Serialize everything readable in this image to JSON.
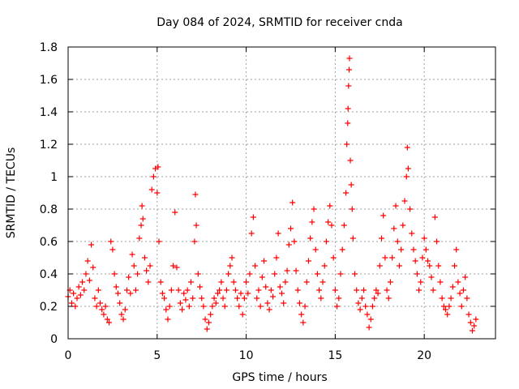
{
  "chart_data": {
    "type": "scatter",
    "title": "Day 084 of 2024, SRMTID for receiver cnda",
    "xlabel": "GPS time / hours",
    "ylabel": "SRMTID / TECUs",
    "xlim": [
      0,
      24
    ],
    "ylim": [
      0,
      1.8
    ],
    "x_ticks": [
      0,
      5,
      10,
      15,
      20
    ],
    "x_tick_labels": [
      "0",
      "5",
      "10",
      "15",
      "20"
    ],
    "y_ticks": [
      0,
      0.2,
      0.4,
      0.6,
      0.8,
      1.0,
      1.2,
      1.4,
      1.6,
      1.8
    ],
    "y_tick_labels": [
      "0",
      "0.2",
      "0.4",
      "0.6",
      "0.8",
      "1",
      "1.2",
      "1.4",
      "1.6",
      "1.8"
    ],
    "grid": true,
    "marker": "plus",
    "color": "#ff0000",
    "series": [
      {
        "name": "SRMTID",
        "points": [
          [
            0.0,
            0.26
          ],
          [
            0.1,
            0.3
          ],
          [
            0.2,
            0.22
          ],
          [
            0.3,
            0.28
          ],
          [
            0.4,
            0.2
          ],
          [
            0.5,
            0.25
          ],
          [
            0.6,
            0.32
          ],
          [
            0.7,
            0.27
          ],
          [
            0.8,
            0.35
          ],
          [
            0.9,
            0.3
          ],
          [
            1.0,
            0.4
          ],
          [
            1.1,
            0.48
          ],
          [
            1.2,
            0.36
          ],
          [
            1.3,
            0.58
          ],
          [
            1.4,
            0.44
          ],
          [
            1.5,
            0.25
          ],
          [
            1.6,
            0.2
          ],
          [
            1.7,
            0.3
          ],
          [
            1.8,
            0.22
          ],
          [
            1.9,
            0.18
          ],
          [
            2.0,
            0.15
          ],
          [
            2.1,
            0.2
          ],
          [
            2.2,
            0.12
          ],
          [
            2.3,
            0.1
          ],
          [
            2.4,
            0.6
          ],
          [
            2.5,
            0.55
          ],
          [
            2.6,
            0.4
          ],
          [
            2.7,
            0.32
          ],
          [
            2.8,
            0.28
          ],
          [
            2.9,
            0.22
          ],
          [
            3.0,
            0.15
          ],
          [
            3.1,
            0.12
          ],
          [
            3.2,
            0.18
          ],
          [
            3.3,
            0.3
          ],
          [
            3.4,
            0.38
          ],
          [
            3.5,
            0.28
          ],
          [
            3.6,
            0.52
          ],
          [
            3.7,
            0.45
          ],
          [
            3.8,
            0.3
          ],
          [
            3.9,
            0.4
          ],
          [
            4.0,
            0.62
          ],
          [
            4.1,
            0.7
          ],
          [
            4.15,
            0.82
          ],
          [
            4.2,
            0.74
          ],
          [
            4.3,
            0.5
          ],
          [
            4.4,
            0.42
          ],
          [
            4.5,
            0.35
          ],
          [
            4.6,
            0.45
          ],
          [
            4.7,
            0.92
          ],
          [
            4.8,
            1.0
          ],
          [
            4.9,
            1.05
          ],
          [
            5.0,
            0.9
          ],
          [
            5.05,
            1.06
          ],
          [
            5.1,
            0.6
          ],
          [
            5.2,
            0.35
          ],
          [
            5.3,
            0.28
          ],
          [
            5.4,
            0.25
          ],
          [
            5.5,
            0.18
          ],
          [
            5.6,
            0.12
          ],
          [
            5.7,
            0.2
          ],
          [
            5.8,
            0.3
          ],
          [
            5.9,
            0.45
          ],
          [
            6.0,
            0.78
          ],
          [
            6.1,
            0.44
          ],
          [
            6.2,
            0.3
          ],
          [
            6.3,
            0.22
          ],
          [
            6.4,
            0.18
          ],
          [
            6.5,
            0.28
          ],
          [
            6.6,
            0.24
          ],
          [
            6.7,
            0.3
          ],
          [
            6.8,
            0.2
          ],
          [
            6.9,
            0.35
          ],
          [
            7.0,
            0.25
          ],
          [
            7.1,
            0.6
          ],
          [
            7.15,
            0.89
          ],
          [
            7.2,
            0.7
          ],
          [
            7.3,
            0.4
          ],
          [
            7.4,
            0.32
          ],
          [
            7.5,
            0.25
          ],
          [
            7.6,
            0.2
          ],
          [
            7.7,
            0.12
          ],
          [
            7.8,
            0.06
          ],
          [
            7.9,
            0.1
          ],
          [
            8.0,
            0.15
          ],
          [
            8.1,
            0.2
          ],
          [
            8.2,
            0.25
          ],
          [
            8.3,
            0.22
          ],
          [
            8.4,
            0.28
          ],
          [
            8.5,
            0.3
          ],
          [
            8.6,
            0.35
          ],
          [
            8.7,
            0.25
          ],
          [
            8.8,
            0.2
          ],
          [
            8.9,
            0.3
          ],
          [
            9.0,
            0.4
          ],
          [
            9.1,
            0.45
          ],
          [
            9.2,
            0.5
          ],
          [
            9.3,
            0.35
          ],
          [
            9.4,
            0.3
          ],
          [
            9.5,
            0.25
          ],
          [
            9.6,
            0.2
          ],
          [
            9.7,
            0.28
          ],
          [
            9.8,
            0.15
          ],
          [
            9.9,
            0.25
          ],
          [
            10.0,
            0.35
          ],
          [
            10.1,
            0.28
          ],
          [
            10.2,
            0.4
          ],
          [
            10.3,
            0.65
          ],
          [
            10.4,
            0.75
          ],
          [
            10.5,
            0.45
          ],
          [
            10.6,
            0.25
          ],
          [
            10.7,
            0.3
          ],
          [
            10.8,
            0.2
          ],
          [
            10.9,
            0.38
          ],
          [
            11.0,
            0.48
          ],
          [
            11.1,
            0.32
          ],
          [
            11.2,
            0.22
          ],
          [
            11.3,
            0.18
          ],
          [
            11.4,
            0.3
          ],
          [
            11.5,
            0.26
          ],
          [
            11.6,
            0.4
          ],
          [
            11.7,
            0.5
          ],
          [
            11.8,
            0.65
          ],
          [
            11.9,
            0.32
          ],
          [
            12.0,
            0.28
          ],
          [
            12.1,
            0.22
          ],
          [
            12.2,
            0.35
          ],
          [
            12.3,
            0.42
          ],
          [
            12.4,
            0.58
          ],
          [
            12.5,
            0.68
          ],
          [
            12.6,
            0.84
          ],
          [
            12.7,
            0.6
          ],
          [
            12.8,
            0.42
          ],
          [
            12.9,
            0.3
          ],
          [
            13.0,
            0.22
          ],
          [
            13.1,
            0.15
          ],
          [
            13.2,
            0.1
          ],
          [
            13.3,
            0.2
          ],
          [
            13.4,
            0.35
          ],
          [
            13.5,
            0.48
          ],
          [
            13.6,
            0.62
          ],
          [
            13.7,
            0.72
          ],
          [
            13.8,
            0.8
          ],
          [
            13.9,
            0.55
          ],
          [
            14.0,
            0.4
          ],
          [
            14.1,
            0.3
          ],
          [
            14.2,
            0.25
          ],
          [
            14.3,
            0.35
          ],
          [
            14.4,
            0.45
          ],
          [
            14.5,
            0.6
          ],
          [
            14.6,
            0.72
          ],
          [
            14.7,
            0.82
          ],
          [
            14.8,
            0.7
          ],
          [
            14.9,
            0.5
          ],
          [
            15.0,
            0.3
          ],
          [
            15.1,
            0.2
          ],
          [
            15.2,
            0.25
          ],
          [
            15.3,
            0.4
          ],
          [
            15.4,
            0.55
          ],
          [
            15.5,
            0.7
          ],
          [
            15.6,
            0.9
          ],
          [
            15.65,
            1.2
          ],
          [
            15.7,
            1.33
          ],
          [
            15.72,
            1.42
          ],
          [
            15.75,
            1.56
          ],
          [
            15.78,
            1.66
          ],
          [
            15.8,
            1.73
          ],
          [
            15.85,
            1.1
          ],
          [
            15.9,
            0.95
          ],
          [
            15.95,
            0.8
          ],
          [
            16.0,
            0.62
          ],
          [
            16.1,
            0.4
          ],
          [
            16.2,
            0.3
          ],
          [
            16.3,
            0.22
          ],
          [
            16.4,
            0.18
          ],
          [
            16.5,
            0.25
          ],
          [
            16.6,
            0.3
          ],
          [
            16.7,
            0.2
          ],
          [
            16.8,
            0.15
          ],
          [
            16.9,
            0.07
          ],
          [
            17.0,
            0.12
          ],
          [
            17.1,
            0.2
          ],
          [
            17.2,
            0.25
          ],
          [
            17.3,
            0.3
          ],
          [
            17.4,
            0.28
          ],
          [
            17.5,
            0.45
          ],
          [
            17.6,
            0.62
          ],
          [
            17.7,
            0.76
          ],
          [
            17.8,
            0.5
          ],
          [
            17.9,
            0.3
          ],
          [
            18.0,
            0.25
          ],
          [
            18.1,
            0.35
          ],
          [
            18.2,
            0.5
          ],
          [
            18.3,
            0.68
          ],
          [
            18.4,
            0.82
          ],
          [
            18.5,
            0.6
          ],
          [
            18.6,
            0.45
          ],
          [
            18.7,
            0.55
          ],
          [
            18.8,
            0.7
          ],
          [
            18.9,
            0.85
          ],
          [
            19.0,
            1.0
          ],
          [
            19.05,
            1.18
          ],
          [
            19.1,
            1.05
          ],
          [
            19.2,
            0.8
          ],
          [
            19.3,
            0.65
          ],
          [
            19.4,
            0.55
          ],
          [
            19.5,
            0.48
          ],
          [
            19.6,
            0.4
          ],
          [
            19.7,
            0.3
          ],
          [
            19.8,
            0.35
          ],
          [
            19.9,
            0.5
          ],
          [
            20.0,
            0.62
          ],
          [
            20.1,
            0.55
          ],
          [
            20.2,
            0.48
          ],
          [
            20.3,
            0.45
          ],
          [
            20.4,
            0.38
          ],
          [
            20.5,
            0.3
          ],
          [
            20.6,
            0.75
          ],
          [
            20.7,
            0.6
          ],
          [
            20.8,
            0.45
          ],
          [
            20.9,
            0.35
          ],
          [
            21.0,
            0.25
          ],
          [
            21.1,
            0.2
          ],
          [
            21.2,
            0.18
          ],
          [
            21.3,
            0.15
          ],
          [
            21.4,
            0.2
          ],
          [
            21.5,
            0.25
          ],
          [
            21.6,
            0.32
          ],
          [
            21.7,
            0.45
          ],
          [
            21.8,
            0.55
          ],
          [
            21.9,
            0.35
          ],
          [
            22.0,
            0.28
          ],
          [
            22.1,
            0.2
          ],
          [
            22.2,
            0.3
          ],
          [
            22.3,
            0.38
          ],
          [
            22.4,
            0.25
          ],
          [
            22.5,
            0.15
          ],
          [
            22.6,
            0.1
          ],
          [
            22.7,
            0.05
          ],
          [
            22.8,
            0.08
          ],
          [
            22.9,
            0.12
          ]
        ]
      }
    ]
  }
}
